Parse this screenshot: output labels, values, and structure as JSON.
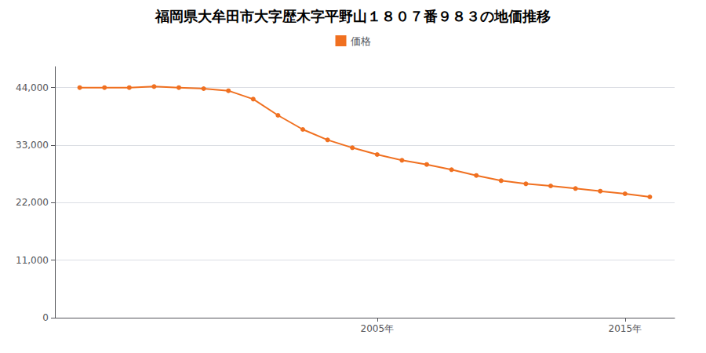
{
  "chart_data": {
    "type": "line",
    "title": "福岡県大牟田市大字歴木字平野山１８０７番９８３の地価推移",
    "x": [
      1993,
      1994,
      1995,
      1996,
      1997,
      1998,
      1999,
      2000,
      2001,
      2002,
      2003,
      2004,
      2005,
      2006,
      2007,
      2008,
      2009,
      2010,
      2011,
      2012,
      2013,
      2014,
      2015,
      2016
    ],
    "series": [
      {
        "name": "価格",
        "color": "#f07020",
        "marker": "circle",
        "values": [
          44000,
          44000,
          44000,
          44200,
          44000,
          43800,
          43400,
          41800,
          38700,
          36000,
          34000,
          32500,
          31200,
          30100,
          29300,
          28300,
          27200,
          26200,
          25600,
          25200,
          24700,
          24200,
          23700,
          23100
        ]
      }
    ],
    "xlim": [
      1992,
      2017
    ],
    "xticks": [
      {
        "value": 2005,
        "label": "2005年"
      },
      {
        "value": 2015,
        "label": "2015年"
      }
    ],
    "ylim": [
      0,
      48000
    ],
    "yticks": [
      0,
      {
        "value": 11000,
        "label": "11,000"
      },
      {
        "value": 22000,
        "label": "22,000"
      },
      {
        "value": 33000,
        "label": "33,000"
      },
      {
        "value": 44000,
        "label": "44,000"
      }
    ],
    "grid": "y",
    "legend": "top"
  }
}
